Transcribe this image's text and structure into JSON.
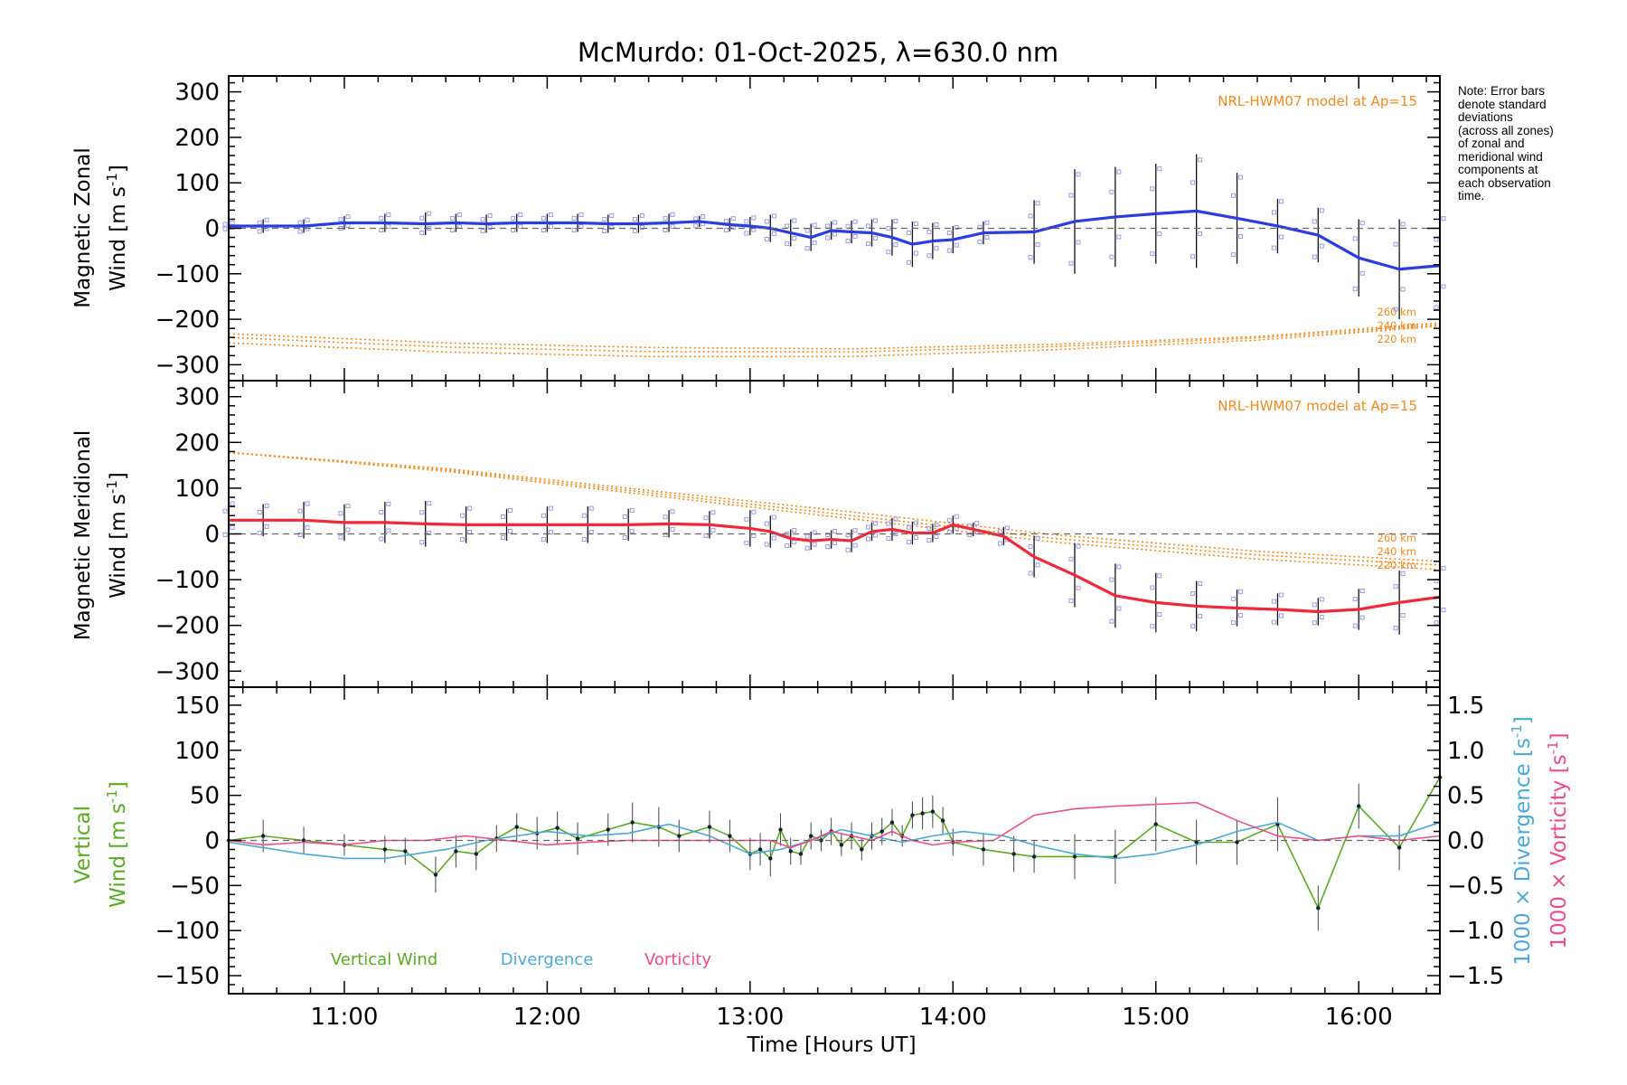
{
  "title": "McMurdo: 01-Oct-2025, λ=630.0 nm",
  "note_lines": [
    "Note: Error bars",
    "denote standard",
    "deviations",
    "(across all zones)",
    "of zonal and",
    "meridional wind",
    "components at",
    "each observation",
    "time."
  ],
  "colors": {
    "zonal": "#2b3de0",
    "meridional": "#f0283c",
    "model": "#f08a1e",
    "vertical": "#5aaa22",
    "divergence": "#4aa8d8",
    "vorticity": "#ee4a8c",
    "scatter": "#9a9ae6",
    "zero_line": "#666666"
  },
  "chart_data": [
    {
      "type": "line",
      "id": "zonal",
      "title": "",
      "xlabel": "",
      "ylabel_line1": "Magnetic Zonal",
      "ylabel_line2": "Wind [m s",
      "ylabel_sup": "-1",
      "ylabel_close": "]",
      "xlim": [
        10.43,
        16.4
      ],
      "ylim": [
        -335,
        335
      ],
      "yticks": [
        -300,
        -200,
        -100,
        0,
        100,
        200,
        300
      ],
      "ytick_labels": [
        "−300",
        "−200",
        "−100",
        "0",
        "100",
        "200",
        "300"
      ],
      "model_label": "NRL-HWM07 model at Ap=15",
      "model_heights": [
        "260 km",
        "240 km",
        "220 km"
      ],
      "x": [
        10.43,
        10.6,
        10.8,
        11.0,
        11.2,
        11.4,
        11.55,
        11.7,
        11.85,
        12.0,
        12.15,
        12.3,
        12.45,
        12.6,
        12.75,
        12.9,
        13.0,
        13.1,
        13.2,
        13.3,
        13.4,
        13.5,
        13.6,
        13.7,
        13.8,
        13.9,
        14.0,
        14.15,
        14.4,
        14.6,
        14.8,
        15.0,
        15.2,
        15.4,
        15.6,
        15.8,
        16.0,
        16.2,
        16.4
      ],
      "y": [
        5,
        5,
        5,
        12,
        12,
        10,
        12,
        10,
        12,
        12,
        12,
        10,
        10,
        12,
        15,
        8,
        5,
        0,
        -10,
        -20,
        -5,
        -8,
        -10,
        -20,
        -35,
        -28,
        -25,
        -10,
        -8,
        15,
        25,
        32,
        38,
        22,
        5,
        -15,
        -65,
        -90,
        -82
      ],
      "err": [
        8,
        15,
        15,
        15,
        20,
        25,
        20,
        20,
        20,
        20,
        20,
        20,
        20,
        20,
        12,
        15,
        20,
        30,
        30,
        30,
        20,
        25,
        30,
        40,
        50,
        40,
        30,
        25,
        70,
        115,
        110,
        110,
        125,
        100,
        60,
        60,
        85,
        110,
        115
      ],
      "model_series": [
        {
          "name": "260 km",
          "x": [
            10.43,
            11.5,
            12.5,
            13.5,
            14.5,
            15.5,
            16.4
          ],
          "y": [
            -232,
            -252,
            -262,
            -265,
            -255,
            -238,
            -208
          ]
        },
        {
          "name": "240 km",
          "x": [
            10.43,
            11.5,
            12.5,
            13.5,
            14.5,
            15.5,
            16.4
          ],
          "y": [
            -240,
            -261,
            -271,
            -272,
            -260,
            -241,
            -212
          ]
        },
        {
          "name": "220 km",
          "x": [
            10.43,
            11.5,
            12.5,
            13.5,
            14.5,
            15.5,
            16.4
          ],
          "y": [
            -252,
            -272,
            -282,
            -282,
            -267,
            -246,
            -215
          ]
        }
      ]
    },
    {
      "type": "line",
      "id": "meridional",
      "title": "",
      "xlabel": "",
      "ylabel_line1": "Magnetic Meridional",
      "ylabel_line2": "Wind [m s",
      "ylabel_sup": "-1",
      "ylabel_close": "]",
      "xlim": [
        10.43,
        16.4
      ],
      "ylim": [
        -335,
        335
      ],
      "yticks": [
        -300,
        -200,
        -100,
        0,
        100,
        200,
        300
      ],
      "ytick_labels": [
        "−300",
        "−200",
        "−100",
        "0",
        "100",
        "200",
        "300"
      ],
      "model_label": "NRL-HWM07 model at Ap=15",
      "model_heights": [
        "260 km",
        "240 km",
        "220 km"
      ],
      "x": [
        10.43,
        10.6,
        10.8,
        11.0,
        11.2,
        11.4,
        11.6,
        11.8,
        12.0,
        12.2,
        12.4,
        12.6,
        12.8,
        13.0,
        13.1,
        13.2,
        13.3,
        13.4,
        13.5,
        13.6,
        13.7,
        13.8,
        13.9,
        14.0,
        14.1,
        14.25,
        14.4,
        14.6,
        14.8,
        15.0,
        15.2,
        15.4,
        15.6,
        15.8,
        16.0,
        16.2,
        16.4
      ],
      "y": [
        30,
        30,
        30,
        25,
        25,
        22,
        20,
        20,
        20,
        20,
        20,
        22,
        20,
        12,
        5,
        -10,
        -15,
        -12,
        -15,
        5,
        10,
        2,
        2,
        20,
        10,
        -5,
        -50,
        -90,
        -135,
        -150,
        -158,
        -162,
        -165,
        -170,
        -165,
        -150,
        -138
      ],
      "err": [
        40,
        35,
        40,
        40,
        45,
        50,
        40,
        35,
        40,
        40,
        35,
        30,
        30,
        40,
        35,
        20,
        20,
        20,
        25,
        20,
        25,
        25,
        20,
        20,
        15,
        20,
        45,
        70,
        70,
        65,
        55,
        40,
        35,
        30,
        45,
        70,
        70
      ],
      "model_series": [
        {
          "name": "260 km",
          "x": [
            10.43,
            11.5,
            12.5,
            13.5,
            14.5,
            15.5,
            16.4
          ],
          "y": [
            178,
            143,
            95,
            48,
            -2,
            -38,
            -60
          ]
        },
        {
          "name": "240 km",
          "x": [
            10.43,
            11.5,
            12.5,
            13.5,
            14.5,
            15.5,
            16.4
          ],
          "y": [
            178,
            140,
            90,
            40,
            -10,
            -46,
            -68
          ]
        },
        {
          "name": "220 km",
          "x": [
            10.43,
            11.5,
            12.5,
            13.5,
            14.5,
            15.5,
            16.4
          ],
          "y": [
            178,
            137,
            85,
            33,
            -18,
            -55,
            -78
          ]
        }
      ]
    },
    {
      "type": "line",
      "id": "vertical",
      "title": "",
      "xlabel": "Time [Hours UT]",
      "xticks": [
        11,
        12,
        13,
        14,
        15,
        16
      ],
      "xtick_labels": [
        "11:00",
        "12:00",
        "13:00",
        "14:00",
        "15:00",
        "16:00"
      ],
      "xlim": [
        10.43,
        16.4
      ],
      "ylim": [
        -170,
        170
      ],
      "yticks": [
        -150,
        -100,
        -50,
        0,
        50,
        100,
        150
      ],
      "ytick_labels": [
        "−150",
        "−100",
        "−50",
        "0",
        "50",
        "100",
        "150"
      ],
      "y2lim": [
        -1.7,
        1.7
      ],
      "y2ticks": [
        -1.5,
        -1.0,
        -0.5,
        0.0,
        0.5,
        1.0,
        1.5
      ],
      "y2tick_labels": [
        "−1.5",
        "−1.0",
        "−0.5",
        "0.0",
        "0.5",
        "1.0",
        "1.5"
      ],
      "ylabel_line1": "Vertical",
      "ylabel_line2": "Wind [m s",
      "ylabel_sup": "-1",
      "ylabel_close": "]",
      "y2label_div": "1000 × Divergence [s",
      "y2label_vor": "1000 × Vorticity [s",
      "y2label_sup": "-1",
      "y2label_close": "]",
      "legend": [
        "Vertical Wind",
        "Divergence",
        "Vorticity"
      ],
      "series": [
        {
          "name": "Vertical Wind",
          "axis": "left",
          "x": [
            10.43,
            10.6,
            10.8,
            11.0,
            11.2,
            11.3,
            11.45,
            11.55,
            11.65,
            11.75,
            11.85,
            11.95,
            12.05,
            12.15,
            12.3,
            12.42,
            12.55,
            12.65,
            12.8,
            12.9,
            13.0,
            13.05,
            13.1,
            13.15,
            13.2,
            13.25,
            13.3,
            13.35,
            13.4,
            13.45,
            13.5,
            13.55,
            13.6,
            13.65,
            13.7,
            13.75,
            13.8,
            13.85,
            13.9,
            13.95,
            14.0,
            14.15,
            14.3,
            14.4,
            14.6,
            14.8,
            15.0,
            15.2,
            15.4,
            15.6,
            15.8,
            16.0,
            16.2,
            16.4
          ],
          "y": [
            0,
            5,
            0,
            -5,
            -10,
            -12,
            -38,
            -12,
            -15,
            2,
            15,
            8,
            14,
            2,
            12,
            20,
            15,
            5,
            15,
            5,
            -15,
            -10,
            -20,
            12,
            -12,
            -15,
            5,
            0,
            10,
            -5,
            5,
            -10,
            5,
            10,
            20,
            5,
            28,
            30,
            32,
            22,
            -2,
            -10,
            -15,
            -18,
            -18,
            -18,
            18,
            -2,
            -2,
            18,
            -75,
            38,
            -8,
            70
          ],
          "err": [
            5,
            18,
            15,
            12,
            15,
            15,
            20,
            18,
            18,
            15,
            15,
            18,
            18,
            18,
            18,
            22,
            22,
            18,
            18,
            18,
            18,
            18,
            20,
            18,
            15,
            12,
            15,
            12,
            15,
            12,
            15,
            12,
            15,
            15,
            15,
            12,
            15,
            18,
            18,
            15,
            15,
            18,
            20,
            18,
            25,
            30,
            30,
            25,
            25,
            30,
            25,
            25,
            25,
            25
          ]
        },
        {
          "name": "Divergence",
          "axis": "right",
          "x": [
            10.43,
            10.8,
            11.0,
            11.2,
            11.5,
            11.7,
            12.0,
            12.2,
            12.4,
            12.6,
            12.8,
            13.0,
            13.15,
            13.3,
            13.45,
            13.6,
            13.75,
            13.9,
            14.05,
            14.25,
            14.4,
            14.6,
            14.8,
            15.0,
            15.2,
            15.4,
            15.6,
            15.8,
            16.0,
            16.2,
            16.4
          ],
          "y": [
            -0.02,
            -0.15,
            -0.2,
            -0.2,
            -0.1,
            0.0,
            0.1,
            0.05,
            0.08,
            0.18,
            0.05,
            -0.15,
            -0.1,
            0.0,
            0.12,
            0.05,
            -0.02,
            0.05,
            0.1,
            0.05,
            -0.05,
            -0.15,
            -0.2,
            -0.15,
            -0.05,
            0.1,
            0.2,
            0.0,
            0.05,
            0.05,
            0.2
          ]
        },
        {
          "name": "Vorticity",
          "axis": "right",
          "x": [
            10.43,
            10.6,
            10.8,
            11.0,
            11.2,
            11.4,
            11.6,
            11.8,
            12.0,
            12.2,
            12.4,
            12.6,
            12.8,
            13.0,
            13.1,
            13.2,
            13.3,
            13.4,
            13.5,
            13.6,
            13.7,
            13.8,
            13.9,
            14.0,
            14.2,
            14.4,
            14.6,
            14.8,
            15.0,
            15.2,
            15.4,
            15.6,
            15.8,
            16.0,
            16.2,
            16.4
          ],
          "y": [
            0.0,
            -0.05,
            -0.02,
            -0.05,
            0.0,
            0.0,
            0.05,
            0.0,
            -0.05,
            -0.02,
            0.0,
            0.0,
            0.0,
            0.0,
            0.0,
            -0.08,
            0.0,
            0.1,
            0.05,
            0.0,
            0.1,
            0.0,
            -0.05,
            -0.02,
            0.0,
            0.28,
            0.35,
            0.38,
            0.4,
            0.42,
            0.22,
            0.05,
            0.0,
            0.05,
            0.0,
            0.05
          ]
        }
      ]
    }
  ]
}
